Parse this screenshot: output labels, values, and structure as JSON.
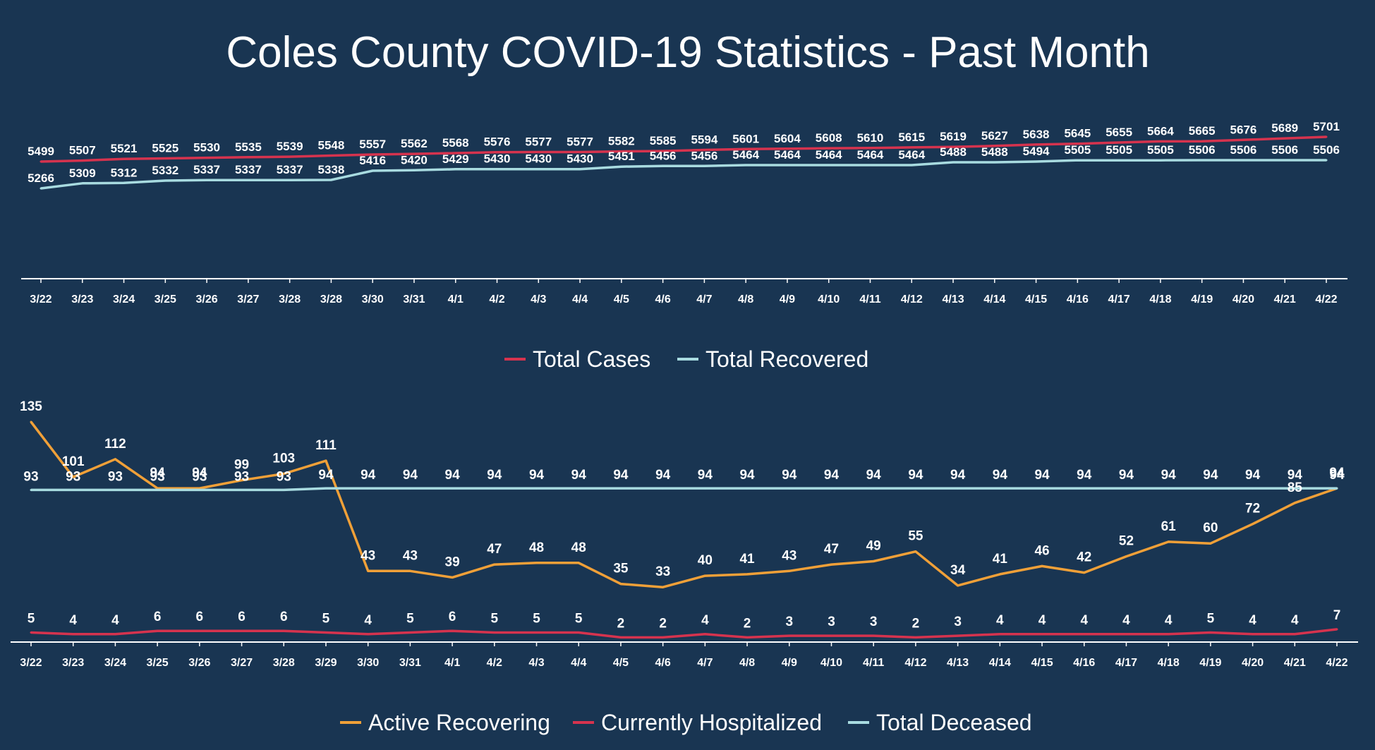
{
  "title": "Coles County COVID-19 Statistics - Past Month",
  "colors": {
    "background": "#193552",
    "red": "#d6334e",
    "cyan": "#a8dbe0",
    "orange": "#f0a038",
    "axis": "#ffffff"
  },
  "chart_data": [
    {
      "type": "line",
      "categories": [
        "3/22",
        "3/23",
        "3/24",
        "3/25",
        "3/26",
        "3/27",
        "3/28",
        "3/28",
        "3/30",
        "3/31",
        "4/1",
        "4/2",
        "4/3",
        "4/4",
        "4/5",
        "4/6",
        "4/7",
        "4/8",
        "4/9",
        "4/10",
        "4/11",
        "4/12",
        "4/13",
        "4/14",
        "4/15",
        "4/16",
        "4/17",
        "4/18",
        "4/19",
        "4/20",
        "4/21",
        "4/22"
      ],
      "series": [
        {
          "name": "Total Cases",
          "color": "#d6334e",
          "values": [
            5499,
            5507,
            5521,
            5525,
            5530,
            5535,
            5539,
            5548,
            5557,
            5562,
            5568,
            5576,
            5577,
            5577,
            5582,
            5585,
            5594,
            5601,
            5604,
            5608,
            5610,
            5615,
            5619,
            5627,
            5638,
            5645,
            5655,
            5664,
            5665,
            5676,
            5689,
            5701
          ]
        },
        {
          "name": "Total Recovered",
          "color": "#a8dbe0",
          "values": [
            5266,
            5309,
            5312,
            5332,
            5337,
            5337,
            5337,
            5338,
            5416,
            5420,
            5429,
            5430,
            5430,
            5430,
            5451,
            5456,
            5456,
            5464,
            5464,
            5464,
            5464,
            5464,
            5488,
            5488,
            5494,
            5505,
            5505,
            5505,
            5506,
            5506,
            5506,
            5506
          ]
        }
      ],
      "legend": [
        "Total Cases",
        "Total Recovered"
      ],
      "legend_position": "bottom",
      "title": "",
      "xlabel": "",
      "ylabel": ""
    },
    {
      "type": "line",
      "categories": [
        "3/22",
        "3/23",
        "3/24",
        "3/25",
        "3/26",
        "3/27",
        "3/28",
        "3/29",
        "3/30",
        "3/31",
        "4/1",
        "4/2",
        "4/3",
        "4/4",
        "4/5",
        "4/6",
        "4/7",
        "4/8",
        "4/9",
        "4/10",
        "4/11",
        "4/12",
        "4/13",
        "4/14",
        "4/15",
        "4/16",
        "4/17",
        "4/18",
        "4/19",
        "4/20",
        "4/21",
        "4/22"
      ],
      "series": [
        {
          "name": "Active Recovering",
          "color": "#f0a038",
          "values": [
            135,
            101,
            112,
            94,
            94,
            99,
            103,
            111,
            43,
            43,
            39,
            47,
            48,
            48,
            35,
            33,
            40,
            41,
            43,
            47,
            49,
            55,
            34,
            41,
            46,
            42,
            52,
            61,
            60,
            72,
            85,
            94
          ]
        },
        {
          "name": "Currently Hospitalized",
          "color": "#d6334e",
          "values": [
            5,
            4,
            4,
            6,
            6,
            6,
            6,
            5,
            4,
            5,
            6,
            5,
            5,
            5,
            2,
            2,
            4,
            2,
            3,
            3,
            3,
            2,
            3,
            4,
            4,
            4,
            4,
            4,
            5,
            4,
            4,
            7
          ]
        },
        {
          "name": "Total Deceased",
          "color": "#a8dbe0",
          "values": [
            93,
            93,
            93,
            93,
            93,
            93,
            93,
            94,
            94,
            94,
            94,
            94,
            94,
            94,
            94,
            94,
            94,
            94,
            94,
            94,
            94,
            94,
            94,
            94,
            94,
            94,
            94,
            94,
            94,
            94,
            94,
            94
          ]
        }
      ],
      "legend": [
        "Active Recovering",
        "Currently Hospitalized",
        "Total Deceased"
      ],
      "legend_position": "bottom",
      "title": "",
      "xlabel": "",
      "ylabel": ""
    }
  ]
}
